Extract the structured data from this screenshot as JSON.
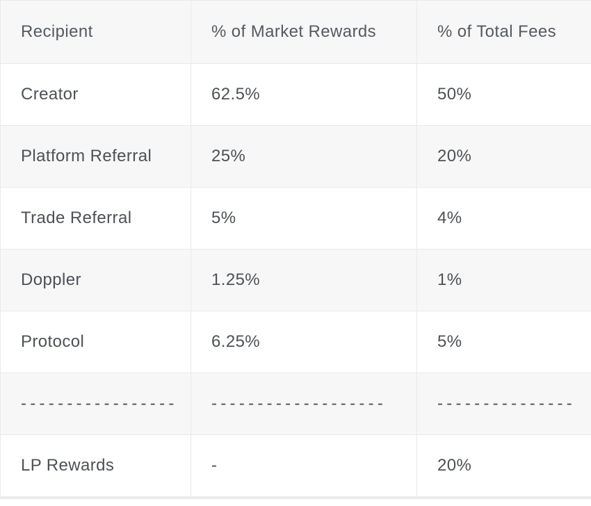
{
  "table": {
    "name": "fee-distribution-table",
    "columns": [
      "Recipient",
      "% of Market Rewards",
      "% of Total Fees"
    ],
    "rows": [
      {
        "cells": [
          "Creator",
          "62.5%",
          "50%"
        ]
      },
      {
        "cells": [
          "Platform Referral",
          "25%",
          "20%"
        ]
      },
      {
        "cells": [
          "Trade Referral",
          "5%",
          "4%"
        ]
      },
      {
        "cells": [
          "Doppler",
          "1.25%",
          "1%"
        ]
      },
      {
        "cells": [
          "Protocol",
          "6.25%",
          "5%"
        ]
      },
      {
        "cells": [
          "-----------------",
          "-------------------",
          "---------------"
        ],
        "divider": true
      },
      {
        "cells": [
          "LP Rewards",
          "-",
          "20%"
        ]
      }
    ],
    "colors": {
      "header_bg": "#f7f7f7",
      "alt_row_bg": "#f7f7f7",
      "row_bg": "#ffffff",
      "border": "#e9e9e9",
      "outer_bottom_border": "#ececec",
      "text": "#4d5156"
    }
  }
}
